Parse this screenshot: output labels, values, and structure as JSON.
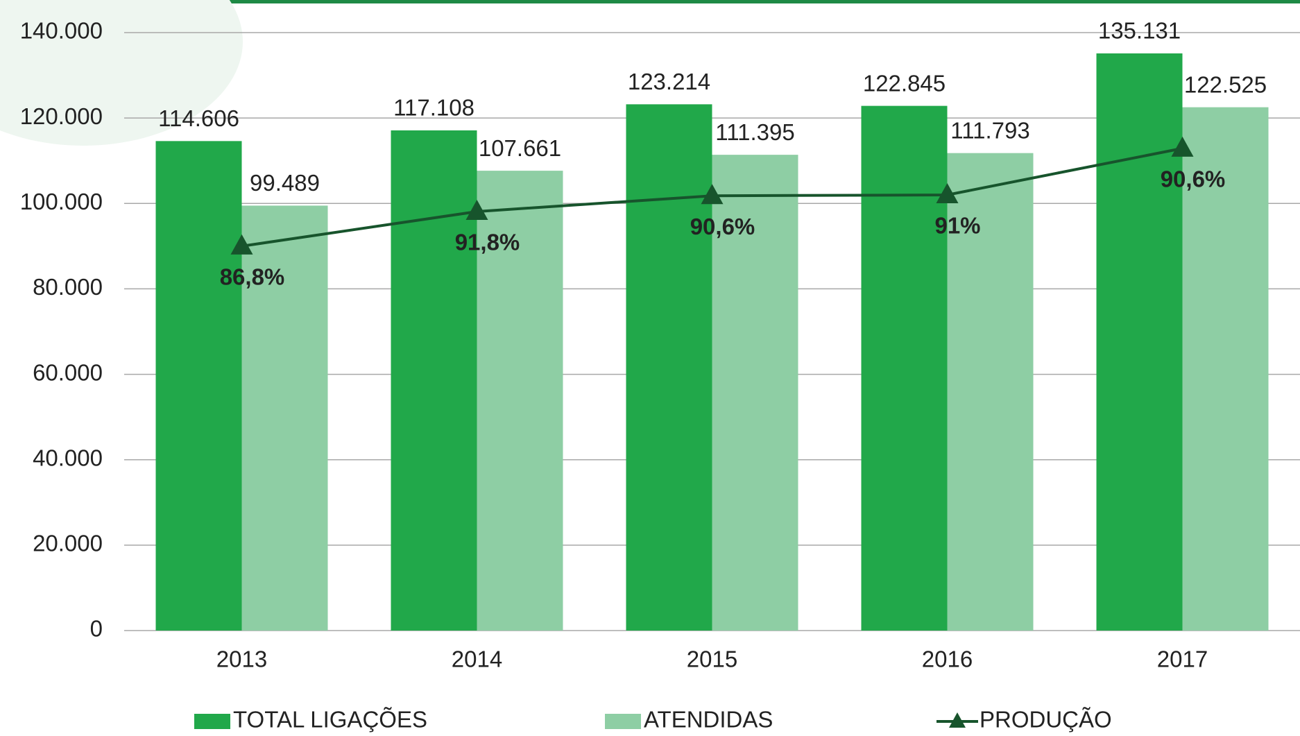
{
  "chart_data": {
    "type": "bar",
    "categories": [
      "2013",
      "2014",
      "2015",
      "2016",
      "2017"
    ],
    "series": [
      {
        "name": "TOTAL LIGAÇÕES",
        "color": "#21a84a",
        "values": [
          114606,
          117108,
          123214,
          122845,
          135131
        ],
        "value_labels": [
          "114.606",
          "117.108",
          "123.214",
          "122.845",
          "135.131"
        ]
      },
      {
        "name": "ATENDIDAS",
        "color": "#8ecea4",
        "values": [
          99489,
          107661,
          111395,
          111793,
          122525
        ],
        "value_labels": [
          "99.489",
          "107.661",
          "111.395",
          "111.793",
          "122.525"
        ]
      },
      {
        "name": "PRODUÇÃO",
        "type": "line",
        "color": "#17542c",
        "values": [
          90000,
          98100,
          101800,
          102000,
          112900
        ],
        "annotations": [
          "86,8%",
          "91,8%",
          "90,6%",
          "91%",
          "90,6%"
        ]
      }
    ],
    "ylim": [
      0,
      140000
    ],
    "yticks": [
      0,
      {
        "value": 20000,
        "label": "20.000"
      },
      {
        "value": 40000,
        "label": "40.000"
      },
      {
        "value": 60000,
        "label": "60.000"
      },
      {
        "value": 80000,
        "label": "80.000"
      },
      {
        "value": 100000,
        "label": "100.000"
      },
      {
        "value": 120000,
        "label": "120.000"
      },
      {
        "value": 140000,
        "label": "140.000"
      }
    ],
    "grid": true
  }
}
